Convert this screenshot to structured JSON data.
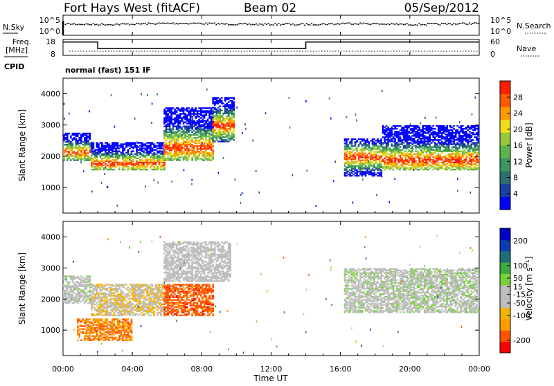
{
  "header": {
    "title": "Fort Hays West (fitACF)",
    "beam": "Beam 02",
    "date": "05/Sep/2012"
  },
  "noise_panel": {
    "left_label": "N.Sky",
    "right_label": "N.Search",
    "left_ticks": [
      "10^5",
      "10^0"
    ],
    "right_ticks": [
      "10^5",
      "10^0"
    ]
  },
  "freq_panel": {
    "left_label_1": "Freq.",
    "left_label_2": "[MHz]",
    "left_ticks": [
      "18",
      "8"
    ],
    "right_label": "Nave",
    "right_ticks": [
      "60",
      "0"
    ],
    "freq_steps": [
      {
        "from_hour": 0,
        "to_hour": 2,
        "mhz": 16.4
      },
      {
        "from_hour": 2,
        "to_hour": 14,
        "mhz": 12.3
      },
      {
        "from_hour": 14,
        "to_hour": 24,
        "mhz": 16.4
      }
    ]
  },
  "cpid": {
    "label": "CPID",
    "value": "normal (fast) 151 IF"
  },
  "time_axis": {
    "label": "Time UT",
    "ticks": [
      "00:00",
      "04:00",
      "08:00",
      "12:00",
      "16:00",
      "20:00",
      "00:00"
    ],
    "range_hours": [
      0,
      24
    ]
  },
  "chart_data": [
    {
      "type": "heatmap",
      "name": "power",
      "ylabel": "Slant Range [km]",
      "yticks": [
        "1000",
        "2000",
        "3000",
        "4000"
      ],
      "ylim": [
        180,
        4500
      ],
      "colorbar_label": "Power [dB]",
      "colorbar_ticks": [
        "28",
        "24",
        "20",
        "16",
        "12",
        "8",
        "4"
      ],
      "colorbar_range": [
        0,
        32
      ],
      "colors": [
        "#0000ff",
        "#1a3fa0",
        "#2d6e6e",
        "#3c9660",
        "#5ab44a",
        "#96c83c",
        "#f0dc1e",
        "#ff9a00",
        "#ff5a00",
        "#ff1e00"
      ],
      "echo_bands": [
        {
          "t0": 0.0,
          "t1": 1.6,
          "r0": 1900,
          "r1": 2800,
          "peak": 2150
        },
        {
          "t0": 1.6,
          "t1": 5.8,
          "r0": 1600,
          "r1": 2500,
          "peak": 1800
        },
        {
          "t0": 5.8,
          "t1": 8.6,
          "r0": 1900,
          "r1": 3600,
          "peak": 2300
        },
        {
          "t0": 8.6,
          "t1": 9.8,
          "r0": 2500,
          "r1": 3900,
          "peak": 3000
        },
        {
          "t0": 16.2,
          "t1": 18.4,
          "r0": 1400,
          "r1": 2600,
          "peak": 2000
        },
        {
          "t0": 18.4,
          "t1": 24.0,
          "r0": 1600,
          "r1": 3000,
          "peak": 1900
        }
      ]
    },
    {
      "type": "heatmap",
      "name": "velocity",
      "ylabel": "Slant Range [km]",
      "yticks": [
        "1000",
        "2000",
        "3000",
        "4000"
      ],
      "ylim": [
        180,
        4500
      ],
      "colorbar_label": "Velocity [m s⁻¹]",
      "colorbar_ticks": [
        "200",
        "100",
        "50",
        "15",
        "-15",
        "-50",
        "-100",
        "-200"
      ],
      "colorbar_range": [
        -250,
        250
      ],
      "colors": [
        "#ff0000",
        "#ff5500",
        "#ff9a00",
        "#f5b400",
        "#bebebe",
        "#bebebe",
        "#78d23c",
        "#3caa3c",
        "#1e6e78",
        "#0a3cb4",
        "#0000c8"
      ],
      "echo_bands": [
        {
          "t0": 0.0,
          "t1": 1.6,
          "r0": 1900,
          "r1": 2800,
          "v": 0
        },
        {
          "t0": 1.6,
          "t1": 5.8,
          "r0": 1500,
          "r1": 2500,
          "v": -60
        },
        {
          "t0": 0.8,
          "t1": 4.0,
          "r0": 700,
          "r1": 1400,
          "v": -150
        },
        {
          "t0": 5.8,
          "t1": 8.6,
          "r0": 1500,
          "r1": 2500,
          "v": -180
        },
        {
          "t0": 5.8,
          "t1": 9.6,
          "r0": 2600,
          "r1": 3900,
          "v": -20
        },
        {
          "t0": 16.2,
          "t1": 24.0,
          "r0": 1600,
          "r1": 3000,
          "v": 5
        }
      ]
    }
  ]
}
